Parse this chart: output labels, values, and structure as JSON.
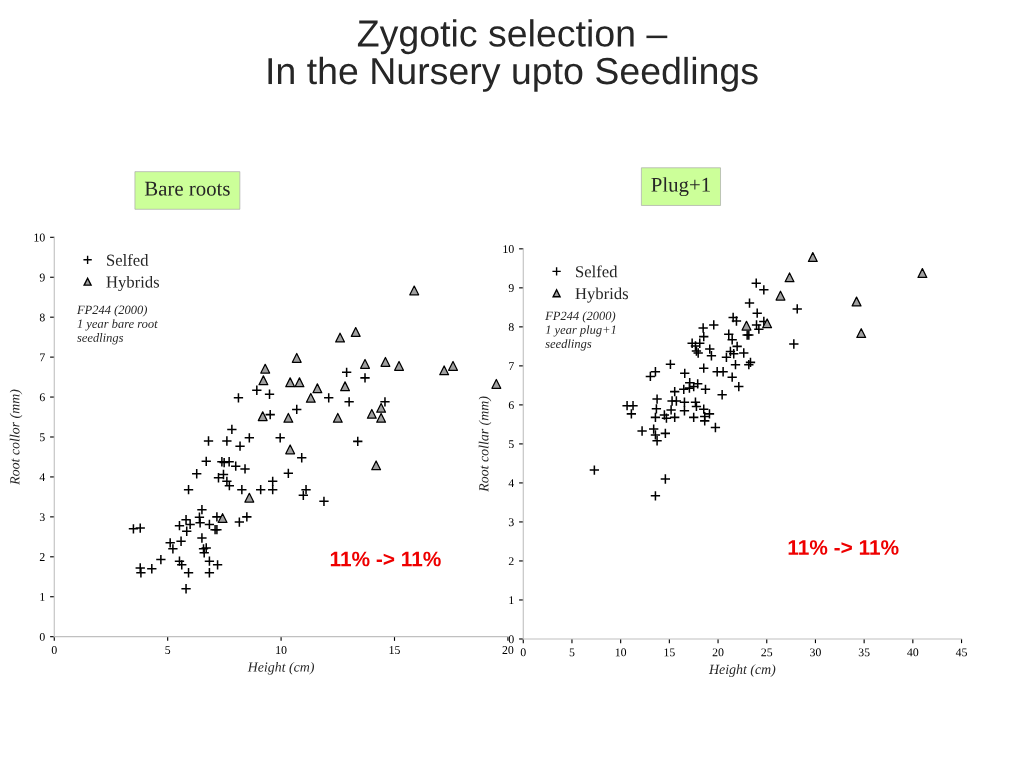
{
  "chart_data": [
    {
      "type": "scatter",
      "title": "Zygotic selection –\nIn the Nursery upto Seedlings",
      "subtitle": "Bare roots",
      "xlabel": "Height (cm)",
      "ylabel": "Root collor (mm)",
      "annotations": [
        "FP244 (2000)\n1 year bare root\nseedlings",
        "11% -> 11%"
      ],
      "xlim": [
        0,
        20
      ],
      "ylim": [
        0,
        10
      ],
      "xticks": [
        0,
        5,
        10,
        15,
        20
      ],
      "yticks": [
        0,
        1,
        2,
        3,
        4,
        5,
        6,
        7,
        8,
        9,
        10
      ],
      "grid": false,
      "legend": "top left",
      "series": [
        {
          "name": "Selfed",
          "color": "#000000",
          "marker": "cross",
          "x": [
            3.49,
            3.79,
            3.79,
            3.82,
            4.3,
            4.7,
            5.11,
            5.23,
            5.59,
            5.52,
            5.81,
            5.84,
            5.99,
            5.52,
            5.62,
            5.92,
            5.81,
            6.4,
            6.43,
            6.51,
            6.51,
            6.58,
            6.61,
            6.7,
            6.84,
            6.84,
            6.84,
            7.09,
            7.17,
            7.2,
            7.17,
            5.92,
            6.28,
            6.7,
            6.8,
            7.24,
            7.39,
            7.46,
            7.49,
            7.61,
            7.71,
            7.72,
            7.83,
            7.61,
            8.0,
            8.19,
            8.27,
            8.41,
            8.16,
            8.49,
            8.6,
            8.12,
            8.93,
            9.49,
            9.52,
            9.1,
            9.63,
            9.63,
            9.96,
            10.69,
            10.91,
            10.32,
            11.1,
            10.98,
            11.89,
            12.1,
            12.89,
            13.0,
            13.7,
            13.38,
            14.58
          ],
          "values": [
            2.7,
            2.72,
            1.72,
            1.6,
            1.7,
            1.93,
            2.35,
            2.2,
            2.39,
            2.78,
            2.93,
            2.64,
            2.81,
            1.89,
            1.8,
            1.6,
            1.2,
            2.99,
            2.85,
            3.18,
            2.47,
            2.2,
            2.1,
            2.22,
            2.81,
            1.89,
            1.6,
            2.68,
            2.68,
            1.8,
            3.0,
            3.68,
            4.08,
            4.39,
            4.9,
            3.98,
            4.38,
            4.06,
            4.36,
            3.89,
            4.38,
            3.78,
            5.19,
            4.9,
            4.27,
            4.77,
            3.68,
            4.2,
            2.87,
            3.0,
            4.98,
            5.98,
            6.17,
            6.07,
            5.56,
            3.68,
            3.89,
            3.68,
            4.98,
            5.69,
            4.48,
            4.09,
            3.68,
            3.54,
            3.39,
            5.98,
            6.62,
            5.88,
            6.48,
            4.89,
            5.88
          ]
        },
        {
          "name": "Hybrids",
          "color": "#a0a0a0",
          "marker": "triangle",
          "x": [
            9.3,
            9.22,
            9.19,
            8.6,
            7.42,
            10.69,
            10.4,
            10.81,
            11.6,
            11.31,
            10.32,
            10.4,
            12.6,
            13.29,
            13.7,
            12.82,
            12.5,
            14.0,
            14.41,
            14.41,
            14.19,
            14.6,
            15.2,
            15.87,
            17.19,
            17.58,
            19.49
          ],
          "values": [
            6.71,
            6.42,
            5.52,
            3.48,
            2.97,
            6.98,
            6.37,
            6.37,
            6.22,
            5.98,
            5.48,
            4.69,
            7.49,
            7.63,
            6.83,
            6.27,
            5.48,
            5.58,
            5.73,
            5.48,
            4.29,
            6.88,
            6.78,
            8.67,
            6.67,
            6.78,
            6.33
          ]
        }
      ]
    },
    {
      "type": "scatter",
      "subtitle": "Plug+1",
      "xlabel": "Height (cm)",
      "ylabel": "Root collar (mm)",
      "annotations": [
        "FP244 (2000)\n1 year plug+1\nseedlings",
        "11% -> 11%"
      ],
      "xlim": [
        0,
        45
      ],
      "ylim": [
        0,
        10
      ],
      "xticks": [
        0,
        5,
        10,
        15,
        20,
        25,
        30,
        35,
        40,
        45
      ],
      "yticks": [
        0,
        1,
        2,
        3,
        4,
        5,
        6,
        7,
        8,
        9,
        10
      ],
      "grid": false,
      "legend": "top left",
      "series": [
        {
          "name": "Selfed",
          "color": "#000000",
          "marker": "cross",
          "x": [
            7.3,
            13.57,
            14.59,
            10.66,
            11.27,
            11.1,
            12.2,
            13.39,
            13.57,
            13.74,
            14.59,
            13.57,
            13.67,
            13.74,
            14.49,
            14.7,
            15.18,
            15.28,
            15.55,
            15.72,
            15.55,
            16.55,
            16.55,
            16.48,
            17.06,
            17.09,
            17.5,
            17.91,
            18.71,
            17.68,
            17.78,
            17.5,
            18.53,
            18.63,
            18.63,
            19.12,
            19.73,
            20.42,
            16.58,
            15.11,
            13.05,
            13.57,
            18.53,
            19.91,
            20.52,
            17.34,
            17.68,
            17.78,
            17.96,
            18.47,
            18.53,
            18.12,
            19.15,
            19.32,
            19.56,
            20.86,
            21.1,
            21.45,
            21.27,
            21.79,
            21.45,
            21.55,
            21.89,
            21.96,
            22.13,
            21.61,
            22.64,
            23.33,
            23.16,
            22.99,
            23.16,
            24.19,
            23.95,
            24.02,
            24.7,
            23.23,
            23.92,
            24.7,
            28.13,
            27.78
          ],
          "values": [
            4.33,
            3.67,
            4.1,
            5.98,
            5.98,
            5.77,
            5.33,
            5.38,
            5.23,
            5.08,
            5.27,
            5.68,
            5.9,
            6.15,
            5.74,
            5.66,
            5.87,
            6.1,
            5.68,
            6.1,
            6.34,
            6.07,
            5.85,
            6.4,
            6.43,
            6.57,
            6.47,
            6.54,
            6.4,
            6.07,
            5.96,
            5.68,
            5.89,
            5.7,
            5.59,
            5.77,
            5.42,
            6.26,
            6.81,
            7.04,
            6.73,
            6.85,
            6.94,
            6.85,
            6.85,
            7.58,
            7.51,
            7.38,
            7.33,
            7.97,
            7.75,
            7.58,
            7.43,
            7.26,
            8.05,
            7.22,
            7.81,
            7.67,
            7.37,
            7.03,
            6.71,
            8.24,
            8.15,
            7.5,
            6.47,
            7.31,
            7.33,
            7.09,
            7.03,
            7.79,
            7.79,
            7.94,
            8.05,
            8.35,
            8.14,
            8.61,
            9.12,
            8.95,
            8.46,
            7.56
          ]
        },
        {
          "name": "Hybrids",
          "color": "#a0a0a0",
          "marker": "triangle",
          "x": [
            22.92,
            25.04,
            26.41,
            27.34,
            29.73,
            34.22,
            34.7,
            40.98
          ],
          "values": [
            8.03,
            8.09,
            8.8,
            9.27,
            9.79,
            8.65,
            7.84,
            9.38
          ]
        }
      ]
    }
  ]
}
